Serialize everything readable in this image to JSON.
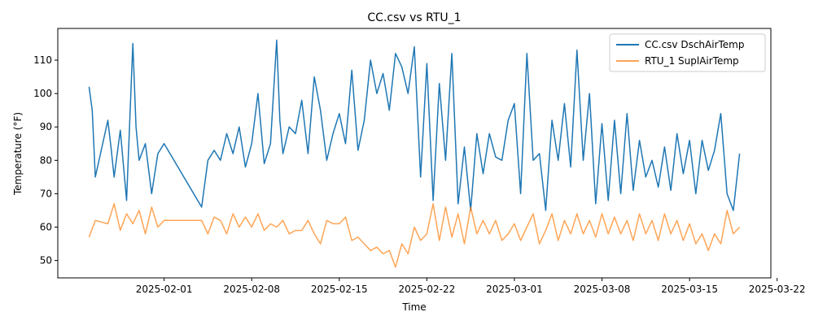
{
  "chart_data": {
    "type": "line",
    "title": "CC.csv vs RTU_1",
    "xlabel": "Time",
    "ylabel": "Temperature (°F)",
    "xlim": [
      "2025-01-23T12:00",
      "2025-03-21T12:00"
    ],
    "ylim": [
      44.8,
      119.5
    ],
    "x_ticks": [
      "2025-02-01",
      "2025-02-08",
      "2025-02-15",
      "2025-02-22",
      "2025-03-01",
      "2025-03-08",
      "2025-03-15",
      "2025-03-22"
    ],
    "y_ticks": [
      50,
      60,
      70,
      80,
      90,
      100,
      110
    ],
    "grid": false,
    "legend": "top-right",
    "series": [
      {
        "name": "CC.csv DschAirTemp",
        "color": "#1f77b4",
        "x": [
          "2025-01-26T00:00",
          "2025-01-26T06:00",
          "2025-01-26T12:00",
          "2025-01-27T12:00",
          "2025-01-27T18:00",
          "2025-01-28T00:00",
          "2025-01-28T12:00",
          "2025-01-29T00:00",
          "2025-01-29T12:00",
          "2025-01-29T18:00",
          "2025-01-30T00:00",
          "2025-01-30T12:00",
          "2025-01-31T00:00",
          "2025-01-31T12:00",
          "2025-02-01T00:00",
          "2025-02-04T00:00",
          "2025-02-04T12:00",
          "2025-02-05T00:00",
          "2025-02-05T12:00",
          "2025-02-06T00:00",
          "2025-02-06T12:00",
          "2025-02-07T00:00",
          "2025-02-07T12:00",
          "2025-02-08T00:00",
          "2025-02-08T12:00",
          "2025-02-09T00:00",
          "2025-02-09T12:00",
          "2025-02-10T00:00",
          "2025-02-10T06:00",
          "2025-02-10T12:00",
          "2025-02-11T00:00",
          "2025-02-11T12:00",
          "2025-02-12T00:00",
          "2025-02-12T12:00",
          "2025-02-13T00:00",
          "2025-02-13T12:00",
          "2025-02-14T00:00",
          "2025-02-14T12:00",
          "2025-02-15T00:00",
          "2025-02-15T12:00",
          "2025-02-16T00:00",
          "2025-02-16T12:00",
          "2025-02-17T00:00",
          "2025-02-17T12:00",
          "2025-02-18T00:00",
          "2025-02-18T12:00",
          "2025-02-19T00:00",
          "2025-02-19T12:00",
          "2025-02-20T00:00",
          "2025-02-20T12:00",
          "2025-02-21T00:00",
          "2025-02-21T12:00",
          "2025-02-22T00:00",
          "2025-02-22T12:00",
          "2025-02-23T00:00",
          "2025-02-23T12:00",
          "2025-02-24T00:00",
          "2025-02-24T12:00",
          "2025-02-25T00:00",
          "2025-02-25T12:00",
          "2025-02-26T00:00",
          "2025-02-26T12:00",
          "2025-02-27T00:00",
          "2025-02-27T12:00",
          "2025-02-28T00:00",
          "2025-02-28T12:00",
          "2025-03-01T00:00",
          "2025-03-01T12:00",
          "2025-03-02T00:00",
          "2025-03-02T12:00",
          "2025-03-03T00:00",
          "2025-03-03T12:00",
          "2025-03-04T00:00",
          "2025-03-04T12:00",
          "2025-03-05T00:00",
          "2025-03-05T12:00",
          "2025-03-06T00:00",
          "2025-03-06T12:00",
          "2025-03-07T00:00",
          "2025-03-07T12:00",
          "2025-03-08T00:00",
          "2025-03-08T12:00",
          "2025-03-09T00:00",
          "2025-03-09T12:00",
          "2025-03-10T00:00",
          "2025-03-10T12:00",
          "2025-03-11T00:00",
          "2025-03-11T12:00",
          "2025-03-12T00:00",
          "2025-03-12T12:00",
          "2025-03-13T00:00",
          "2025-03-13T12:00",
          "2025-03-14T00:00",
          "2025-03-14T12:00",
          "2025-03-15T00:00",
          "2025-03-15T12:00",
          "2025-03-16T00:00",
          "2025-03-16T12:00",
          "2025-03-17T00:00",
          "2025-03-17T12:00",
          "2025-03-18T00:00",
          "2025-03-18T12:00",
          "2025-03-19T00:00"
        ],
        "values": [
          102,
          95,
          75,
          92,
          84,
          75,
          89,
          68,
          115,
          90,
          80,
          85,
          70,
          82,
          85,
          66,
          80,
          83,
          80,
          88,
          82,
          90,
          78,
          85,
          100,
          79,
          85,
          116,
          92,
          82,
          90,
          88,
          98,
          82,
          105,
          95,
          80,
          88,
          94,
          85,
          107,
          83,
          92,
          110,
          100,
          106,
          95,
          112,
          108,
          100,
          114,
          75,
          109,
          68,
          103,
          80,
          112,
          67,
          84,
          65,
          88,
          76,
          88,
          81,
          80,
          92,
          97,
          70,
          112,
          80,
          82,
          65,
          92,
          80,
          97,
          78,
          113,
          80,
          100,
          67,
          91,
          68,
          92,
          70,
          94,
          71,
          86,
          75,
          80,
          72,
          84,
          71,
          88,
          76,
          86,
          70,
          86,
          77,
          83,
          94,
          70,
          65,
          82
        ]
      },
      {
        "name": "RTU_1 SuplAirTemp",
        "color": "#ff7f0e",
        "x": [
          "2025-01-26T00:00",
          "2025-01-26T12:00",
          "2025-01-27T12:00",
          "2025-01-28T00:00",
          "2025-01-28T12:00",
          "2025-01-29T00:00",
          "2025-01-29T12:00",
          "2025-01-30T00:00",
          "2025-01-30T12:00",
          "2025-01-31T00:00",
          "2025-01-31T12:00",
          "2025-02-01T00:00",
          "2025-02-04T00:00",
          "2025-02-04T12:00",
          "2025-02-05T00:00",
          "2025-02-05T12:00",
          "2025-02-06T00:00",
          "2025-02-06T12:00",
          "2025-02-07T00:00",
          "2025-02-07T12:00",
          "2025-02-08T00:00",
          "2025-02-08T12:00",
          "2025-02-09T00:00",
          "2025-02-09T12:00",
          "2025-02-10T00:00",
          "2025-02-10T12:00",
          "2025-02-11T00:00",
          "2025-02-11T12:00",
          "2025-02-12T00:00",
          "2025-02-12T12:00",
          "2025-02-13T00:00",
          "2025-02-13T12:00",
          "2025-02-14T00:00",
          "2025-02-14T12:00",
          "2025-02-15T00:00",
          "2025-02-15T12:00",
          "2025-02-16T00:00",
          "2025-02-16T12:00",
          "2025-02-17T00:00",
          "2025-02-17T12:00",
          "2025-02-18T00:00",
          "2025-02-18T12:00",
          "2025-02-19T00:00",
          "2025-02-19T12:00",
          "2025-02-20T00:00",
          "2025-02-20T12:00",
          "2025-02-21T00:00",
          "2025-02-21T12:00",
          "2025-02-22T00:00",
          "2025-02-22T12:00",
          "2025-02-23T00:00",
          "2025-02-23T12:00",
          "2025-02-24T00:00",
          "2025-02-24T12:00",
          "2025-02-25T00:00",
          "2025-02-25T12:00",
          "2025-02-26T00:00",
          "2025-02-26T12:00",
          "2025-02-27T00:00",
          "2025-02-27T12:00",
          "2025-02-28T00:00",
          "2025-02-28T12:00",
          "2025-03-01T00:00",
          "2025-03-01T12:00",
          "2025-03-02T00:00",
          "2025-03-02T12:00",
          "2025-03-03T00:00",
          "2025-03-03T12:00",
          "2025-03-04T00:00",
          "2025-03-04T12:00",
          "2025-03-05T00:00",
          "2025-03-05T12:00",
          "2025-03-06T00:00",
          "2025-03-06T12:00",
          "2025-03-07T00:00",
          "2025-03-07T12:00",
          "2025-03-08T00:00",
          "2025-03-08T12:00",
          "2025-03-09T00:00",
          "2025-03-09T12:00",
          "2025-03-10T00:00",
          "2025-03-10T12:00",
          "2025-03-11T00:00",
          "2025-03-11T12:00",
          "2025-03-12T00:00",
          "2025-03-12T12:00",
          "2025-03-13T00:00",
          "2025-03-13T12:00",
          "2025-03-14T00:00",
          "2025-03-14T12:00",
          "2025-03-15T00:00",
          "2025-03-15T12:00",
          "2025-03-16T00:00",
          "2025-03-16T12:00",
          "2025-03-17T00:00",
          "2025-03-17T12:00",
          "2025-03-18T00:00",
          "2025-03-18T12:00",
          "2025-03-19T00:00"
        ],
        "values": [
          57,
          62,
          61,
          67,
          59,
          64,
          61,
          65,
          58,
          66,
          60,
          62,
          62,
          58,
          63,
          62,
          58,
          64,
          60,
          63,
          60,
          64,
          59,
          61,
          60,
          62,
          58,
          59,
          59,
          62,
          58,
          55,
          62,
          61,
          61,
          63,
          56,
          57,
          55,
          53,
          54,
          52,
          53,
          48,
          55,
          52,
          60,
          56,
          58,
          67,
          56,
          66,
          57,
          64,
          55,
          66,
          58,
          62,
          58,
          62,
          56,
          58,
          61,
          56,
          60,
          64,
          55,
          59,
          64,
          56,
          62,
          58,
          64,
          58,
          62,
          57,
          64,
          58,
          63,
          58,
          62,
          56,
          64,
          58,
          62,
          56,
          64,
          58,
          62,
          56,
          61,
          55,
          58,
          53,
          58,
          55,
          65,
          58,
          60
        ]
      }
    ]
  }
}
